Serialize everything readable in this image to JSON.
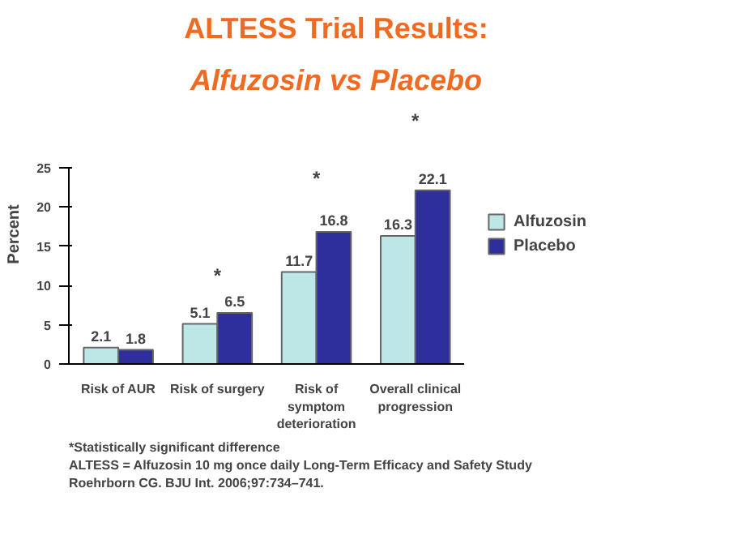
{
  "chart_data": {
    "type": "bar",
    "title": "ALTESS Trial Results:",
    "subtitle": "Alfuzosin vs Placebo",
    "ylabel": "Percent",
    "categories": [
      "Risk of AUR",
      "Risk of surgery",
      "Risk of\nsymptom\ndeterioration",
      "Overall clinical\nprogression"
    ],
    "series": [
      {
        "name": "Alfuzosin",
        "color": "#bde6e6",
        "values": [
          2.1,
          5.1,
          11.7,
          16.3
        ]
      },
      {
        "name": "Placebo",
        "color": "#2e2e9c",
        "values": [
          1.8,
          6.5,
          16.8,
          22.1
        ]
      }
    ],
    "ylim": [
      0,
      25
    ],
    "yticks": [
      0,
      5,
      10,
      15,
      20,
      25
    ],
    "grid": false,
    "legend": "right",
    "data_labels": true,
    "annotations": [
      "*",
      "*",
      "*",
      "*Statistically significant difference",
      "ALTESS = Alfuzosin 10 mg once daily Long-Term Efficacy and Safety Study",
      "Roehrborn CG. BJU Int. 2006;97:734–741."
    ]
  }
}
